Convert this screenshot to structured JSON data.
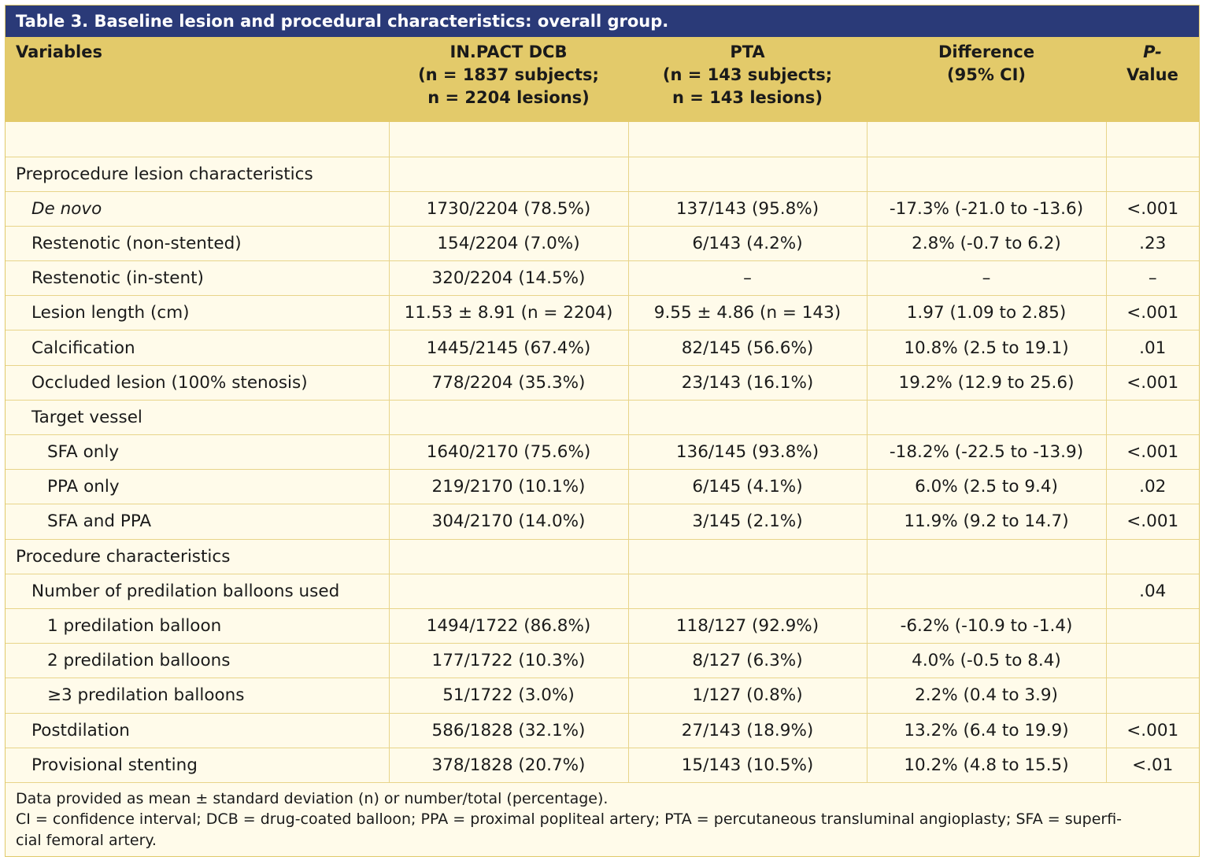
{
  "title": "Table 3. Baseline lesion and procedural characteristics: overall group.",
  "headers": {
    "variables": "Variables",
    "dcb": [
      "IN.PACT DCB",
      "(n = 1837 subjects;",
      "n = 2204 lesions)"
    ],
    "pta": [
      "PTA",
      "(n = 143 subjects;",
      "n = 143 lesions)"
    ],
    "diff": [
      "Difference",
      "(95% CI)"
    ],
    "p_value": [
      "P-",
      "Value"
    ]
  },
  "rows": [
    {
      "label": "",
      "dcb": "",
      "pta": "",
      "diff": "",
      "p": ""
    },
    {
      "label": "Preprocedure lesion characteristics",
      "dcb": "",
      "pta": "",
      "diff": "",
      "p": ""
    },
    {
      "label": "De novo",
      "dcb": "1730/2204 (78.5%)",
      "pta": "137/143 (95.8%)",
      "diff": "-17.3% (-21.0 to -13.6)",
      "p": "<.001"
    },
    {
      "label": "Restenotic (non-stented)",
      "dcb": "154/2204 (7.0%)",
      "pta": "6/143 (4.2%)",
      "diff": "2.8% (-0.7 to 6.2)",
      "p": ".23"
    },
    {
      "label": "Restenotic (in-stent)",
      "dcb": "320/2204 (14.5%)",
      "pta": "–",
      "diff": "–",
      "p": "–"
    },
    {
      "label": "Lesion length (cm)",
      "dcb": "11.53 ± 8.91 (n = 2204)",
      "pta": "9.55 ± 4.86 (n = 143)",
      "diff": "1.97 (1.09 to 2.85)",
      "p": "<.001"
    },
    {
      "label": "Calcification",
      "dcb": "1445/2145 (67.4%)",
      "pta": "82/145 (56.6%)",
      "diff": "10.8% (2.5 to 19.1)",
      "p": ".01"
    },
    {
      "label": "Occluded lesion (100% stenosis)",
      "dcb": "778/2204 (35.3%)",
      "pta": "23/143 (16.1%)",
      "diff": "19.2% (12.9 to 25.6)",
      "p": "<.001"
    },
    {
      "label": "Target vessel",
      "dcb": "",
      "pta": "",
      "diff": "",
      "p": ""
    },
    {
      "label": "SFA only",
      "dcb": "1640/2170 (75.6%)",
      "pta": "136/145 (93.8%)",
      "diff": "-18.2% (-22.5 to -13.9)",
      "p": "<.001"
    },
    {
      "label": "PPA only",
      "dcb": "219/2170 (10.1%)",
      "pta": "6/145 (4.1%)",
      "diff": "6.0% (2.5 to 9.4)",
      "p": ".02"
    },
    {
      "label": "SFA and PPA",
      "dcb": "304/2170 (14.0%)",
      "pta": "3/145 (2.1%)",
      "diff": "11.9% (9.2 to 14.7)",
      "p": "<.001"
    },
    {
      "label": "Procedure characteristics",
      "dcb": "",
      "pta": "",
      "diff": "",
      "p": ""
    },
    {
      "label": "Number of predilation balloons used",
      "dcb": "",
      "pta": "",
      "diff": "",
      "p": ".04"
    },
    {
      "label": "1 predilation balloon",
      "dcb": "1494/1722 (86.8%)",
      "pta": "118/127 (92.9%)",
      "diff": "-6.2% (-10.9 to -1.4)",
      "p": ""
    },
    {
      "label": "2 predilation balloons",
      "dcb": "177/1722 (10.3%)",
      "pta": "8/127 (6.3%)",
      "diff": "4.0% (-0.5 to 8.4)",
      "p": ""
    },
    {
      "label": "≥3 predilation balloons",
      "dcb": "51/1722 (3.0%)",
      "pta": "1/127 (0.8%)",
      "diff": "2.2% (0.4 to 3.9)",
      "p": ""
    },
    {
      "label": "Postdilation",
      "dcb": "586/1828 (32.1%)",
      "pta": "27/143 (18.9%)",
      "diff": "13.2% (6.4 to 19.9)",
      "p": "<.001"
    },
    {
      "label": "Provisional stenting",
      "dcb": "378/1828 (20.7%)",
      "pta": "15/143 (10.5%)",
      "diff": "10.2% (4.8 to 15.5)",
      "p": "<.01"
    }
  ],
  "footnote": [
    "Data provided as mean ± standard deviation (n) or number/total (percentage).",
    "CI = confidence interval; DCB = drug-coated balloon; PPA = proximal popliteal artery; PTA = percutaneous transluminal angioplasty; SFA = superfi-",
    "cial femoral artery."
  ]
}
